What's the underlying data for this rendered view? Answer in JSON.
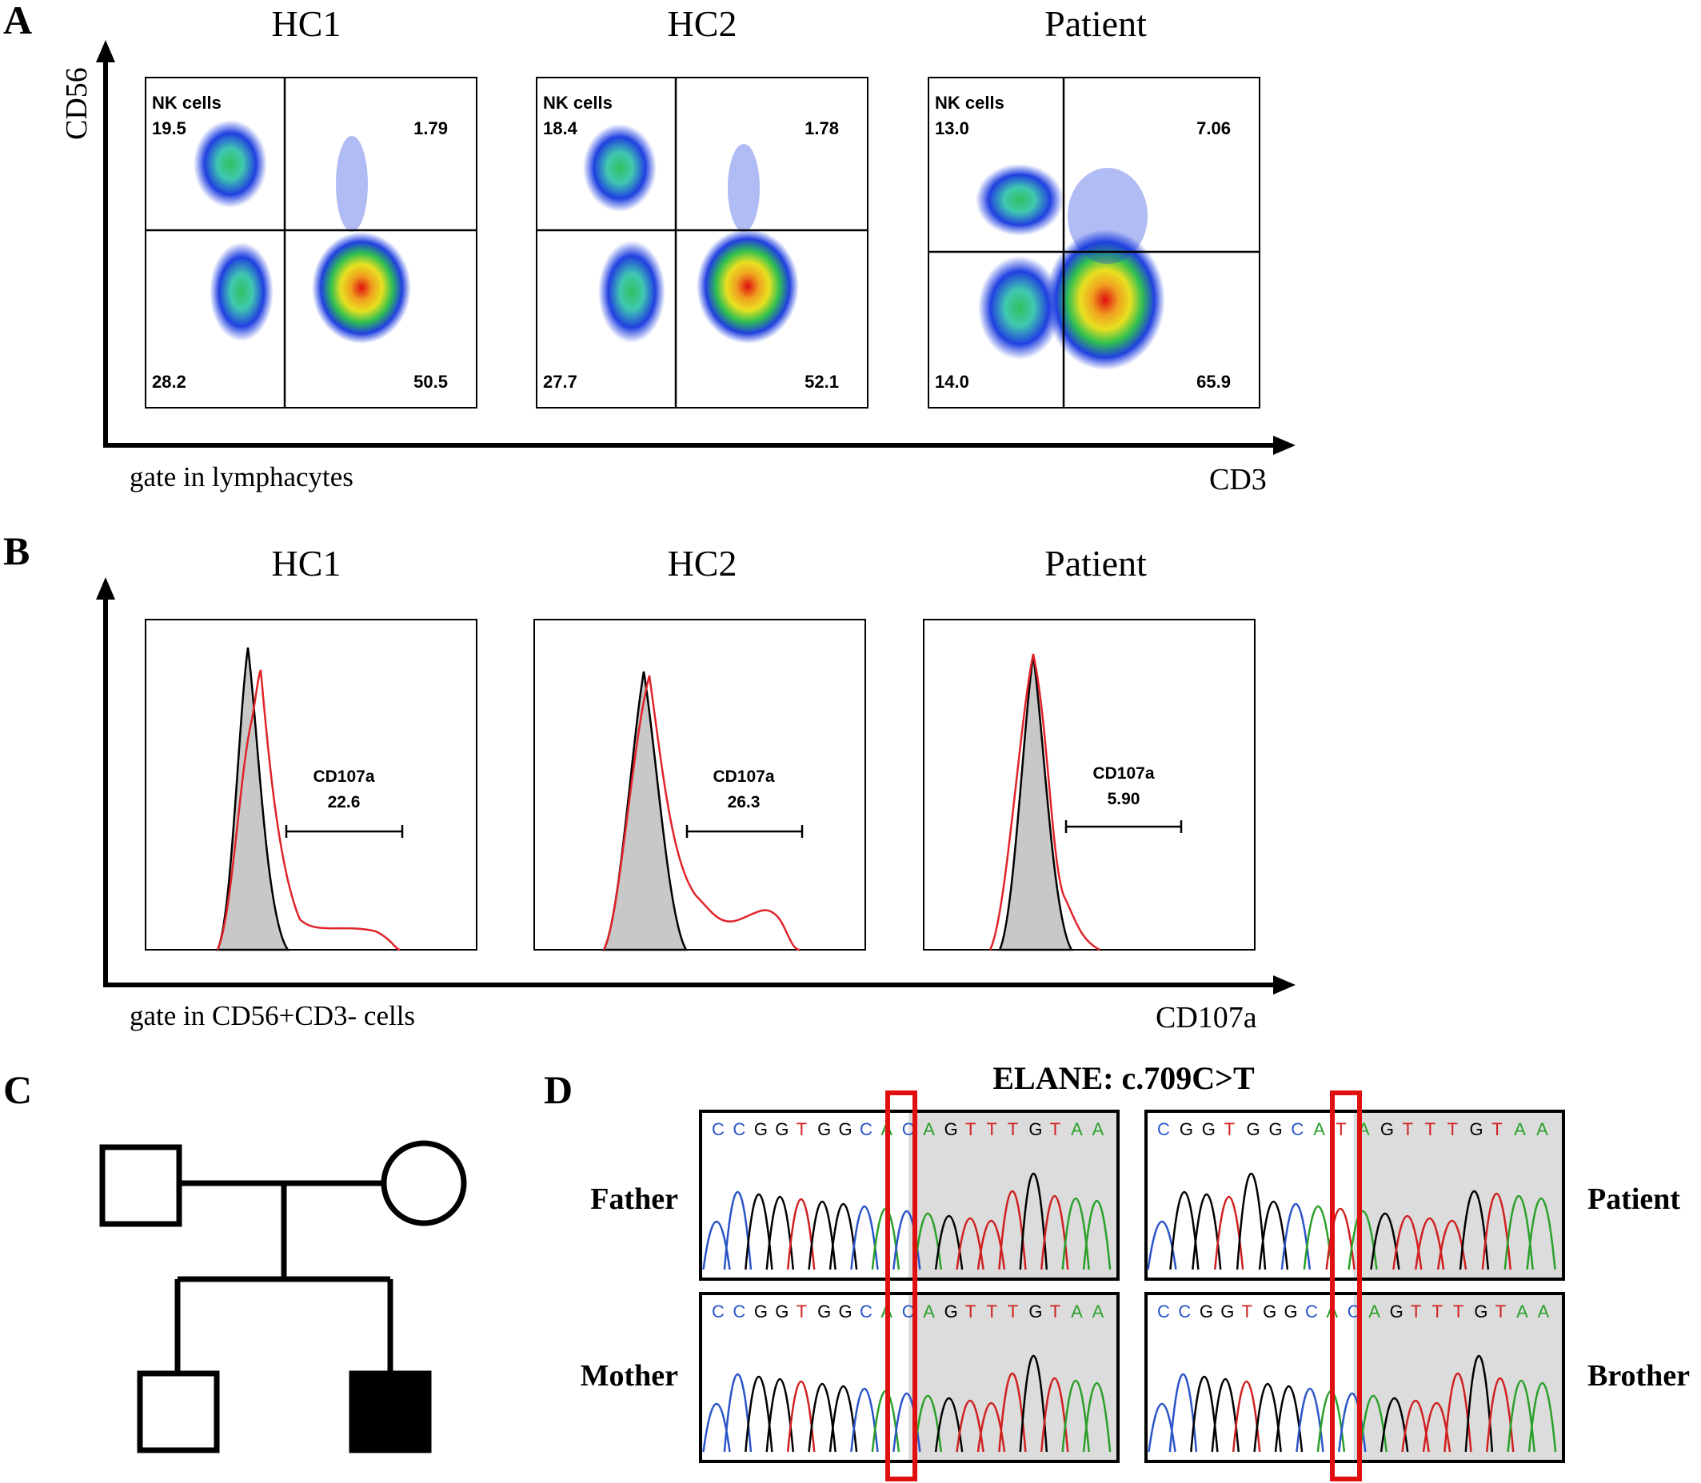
{
  "panel_letters": [
    "A",
    "B",
    "C",
    "D"
  ],
  "panelA": {
    "groups": [
      "HC1",
      "HC2",
      "Patient"
    ],
    "y_axis_label": "CD56",
    "x_axis_label": "CD3",
    "gate_label": "gate in lymphacytes",
    "nk_label": "NK cells",
    "plots": [
      {
        "group": "HC1",
        "upper_left": "19.5",
        "upper_right": "1.79",
        "lower_left": "28.2",
        "lower_right": "50.5"
      },
      {
        "group": "HC2",
        "upper_left": "18.4",
        "upper_right": "1.78",
        "lower_left": "27.7",
        "lower_right": "52.1"
      },
      {
        "group": "Patient",
        "upper_left": "13.0",
        "upper_right": "7.06",
        "lower_left": "14.0",
        "lower_right": "65.9"
      }
    ]
  },
  "panelB": {
    "groups": [
      "HC1",
      "HC2",
      "Patient"
    ],
    "x_axis_label": "CD107a",
    "gate_label": "gate in CD56+CD3- cells",
    "gate_name": "CD107a",
    "values": [
      "22.6",
      "26.3",
      "5.90"
    ],
    "colors": {
      "stimulated": "#e0242a",
      "control_fill": "#c8c8c8",
      "control_line": "#000000"
    }
  },
  "panelC": {
    "description_none": true
  },
  "panelD": {
    "title": "ELANE: c.709C>T",
    "sequence": [
      "C",
      "C",
      "G",
      "G",
      "T",
      "G",
      "G",
      "C",
      "A",
      "C",
      "A",
      "G",
      "T",
      "T",
      "T",
      "G",
      "T",
      "A",
      "A"
    ],
    "patient_sequence": [
      "C",
      "G",
      "G",
      "T",
      "G",
      "G",
      "C",
      "A",
      "T",
      "A",
      "G",
      "T",
      "T",
      "T",
      "G",
      "T",
      "A",
      "A"
    ],
    "samples": [
      "Father",
      "Patient",
      "Mother",
      "Brother"
    ],
    "base_colors": {
      "A": "#2aa02a",
      "C": "#2a55c8",
      "G": "#000000",
      "T": "#d02020"
    },
    "highlight_color": "#e01010"
  },
  "chart_data": [
    {
      "type": "scatter",
      "title": "HC1",
      "xlabel": "CD3",
      "ylabel": "CD56",
      "quadrants": {
        "NK cells (CD56+CD3-)": 19.5,
        "CD56+CD3+": 1.79,
        "CD56-CD3-": 28.2,
        "CD56-CD3+": 50.5
      }
    },
    {
      "type": "scatter",
      "title": "HC2",
      "xlabel": "CD3",
      "ylabel": "CD56",
      "quadrants": {
        "NK cells (CD56+CD3-)": 18.4,
        "CD56+CD3+": 1.78,
        "CD56-CD3-": 27.7,
        "CD56-CD3+": 52.1
      }
    },
    {
      "type": "scatter",
      "title": "Patient",
      "xlabel": "CD3",
      "ylabel": "CD56",
      "quadrants": {
        "NK cells (CD56+CD3-)": 13.0,
        "CD56+CD3+": 7.06,
        "CD56-CD3-": 14.0,
        "CD56-CD3+": 65.9
      }
    },
    {
      "type": "area",
      "title": "HC1 CD107a histogram",
      "xlabel": "CD107a",
      "gate": "CD107a",
      "gate_percent": 22.6
    },
    {
      "type": "area",
      "title": "HC2 CD107a histogram",
      "xlabel": "CD107a",
      "gate": "CD107a",
      "gate_percent": 26.3
    },
    {
      "type": "area",
      "title": "Patient CD107a histogram",
      "xlabel": "CD107a",
      "gate": "CD107a",
      "gate_percent": 5.9
    }
  ]
}
